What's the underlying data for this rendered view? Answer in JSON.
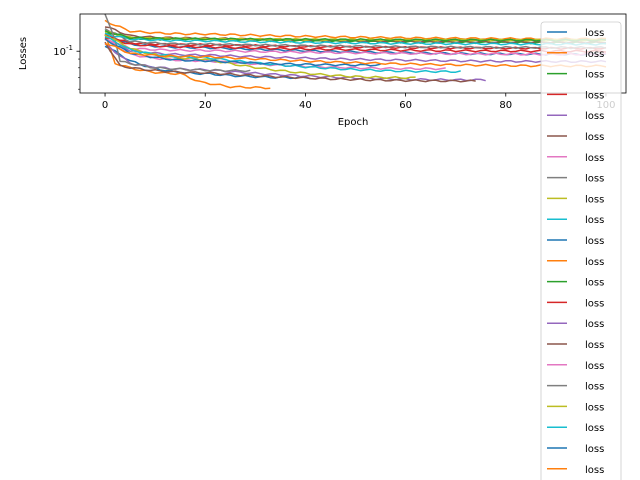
{
  "chart_data": {
    "type": "line",
    "title": "",
    "xlabel": "Epoch",
    "ylabel": "Losses",
    "yscale": "log",
    "xlim": [
      -5,
      104
    ],
    "ylim": [
      0.057,
      0.165
    ],
    "x_ticks": [
      0,
      20,
      40,
      60,
      80,
      100
    ],
    "x_tick_labels": [
      "0",
      "20",
      "40",
      "60",
      "80",
      "100"
    ],
    "y_ticks": [
      0.1
    ],
    "y_tick_labels": [
      "10^-1"
    ],
    "grid": false,
    "legend_position": "right, overflowing below axes",
    "colors": [
      "#1f77b4",
      "#ff7f0e",
      "#2ca02c",
      "#d62728",
      "#9467bd",
      "#8c564b",
      "#e377c2",
      "#7f7f7f",
      "#bcbd22",
      "#17becf"
    ],
    "series": [
      {
        "name": "loss",
        "end_epoch": 100,
        "values_at": {
          "0": 0.126,
          "5": 0.11,
          "20": 0.105,
          "100": 0.096
        }
      },
      {
        "name": "loss",
        "end_epoch": 100,
        "values_at": {
          "0": 0.15,
          "5": 0.131,
          "20": 0.126,
          "100": 0.118
        }
      },
      {
        "name": "loss",
        "end_epoch": 100,
        "values_at": {
          "0": 0.128,
          "5": 0.119,
          "20": 0.117,
          "100": 0.112
        }
      },
      {
        "name": "loss",
        "end_epoch": 100,
        "values_at": {
          "0": 0.124,
          "5": 0.112,
          "20": 0.109,
          "100": 0.104
        }
      },
      {
        "name": "loss",
        "end_epoch": 100,
        "values_at": {
          "0": 0.12,
          "5": 0.101,
          "20": 0.095,
          "100": 0.087
        }
      },
      {
        "name": "loss",
        "end_epoch": 100,
        "values_at": {
          "0": 0.14,
          "5": 0.123,
          "20": 0.119,
          "100": 0.113
        }
      },
      {
        "name": "loss",
        "end_epoch": 100,
        "values_at": {
          "0": 0.118,
          "5": 0.104,
          "20": 0.101,
          "100": 0.096
        }
      },
      {
        "name": "loss",
        "end_epoch": 100,
        "values_at": {
          "0": 0.136,
          "5": 0.114,
          "20": 0.11,
          "100": 0.105
        }
      },
      {
        "name": "loss",
        "end_epoch": 100,
        "values_at": {
          "0": 0.13,
          "5": 0.12,
          "20": 0.118,
          "100": 0.116
        }
      },
      {
        "name": "loss",
        "end_epoch": 100,
        "values_at": {
          "0": 0.126,
          "5": 0.118,
          "20": 0.115,
          "100": 0.11
        }
      },
      {
        "name": "loss",
        "end_epoch": 41,
        "values_at": {
          "0": 0.108,
          "5": 0.088,
          "20": 0.074,
          "41": 0.07
        }
      },
      {
        "name": "loss",
        "end_epoch": 33,
        "values_at": {
          "0": 0.125,
          "2": 0.085,
          "5": 0.08,
          "15": 0.074,
          "19": 0.066,
          "25": 0.062,
          "33": 0.061
        }
      },
      {
        "name": "loss",
        "end_epoch": 100,
        "values_at": {
          "0": 0.131,
          "5": 0.12,
          "20": 0.118,
          "100": 0.116
        }
      },
      {
        "name": "loss",
        "end_epoch": 100,
        "values_at": {
          "0": 0.121,
          "5": 0.11,
          "20": 0.106,
          "100": 0.1
        }
      },
      {
        "name": "loss",
        "end_epoch": 76,
        "values_at": {
          "0": 0.11,
          "5": 0.085,
          "20": 0.078,
          "76": 0.068
        }
      },
      {
        "name": "loss",
        "end_epoch": 74,
        "values_at": {
          "0": 0.113,
          "3": 0.082,
          "20": 0.075,
          "74": 0.067
        }
      },
      {
        "name": "loss",
        "end_epoch": 68,
        "values_at": {
          "0": 0.118,
          "5": 0.096,
          "20": 0.088,
          "68": 0.079
        }
      },
      {
        "name": "loss",
        "end_epoch": 29,
        "values_at": {
          "0": 0.163,
          "2": 0.118,
          "3": 0.087,
          "10": 0.08,
          "29": 0.077
        }
      },
      {
        "name": "loss",
        "end_epoch": 62,
        "values_at": {
          "0": 0.125,
          "5": 0.104,
          "20": 0.09,
          "62": 0.07
        }
      },
      {
        "name": "loss",
        "end_epoch": 71,
        "values_at": {
          "0": 0.122,
          "5": 0.102,
          "20": 0.092,
          "71": 0.076
        }
      },
      {
        "name": "loss",
        "end_epoch": 55,
        "values_at": {
          "0": 0.117,
          "5": 0.098,
          "20": 0.088,
          "55": 0.083
        }
      },
      {
        "name": "loss",
        "end_epoch": 100,
        "values_at": {
          "0": 0.112,
          "5": 0.097,
          "20": 0.093,
          "100": 0.082
        }
      }
    ]
  }
}
